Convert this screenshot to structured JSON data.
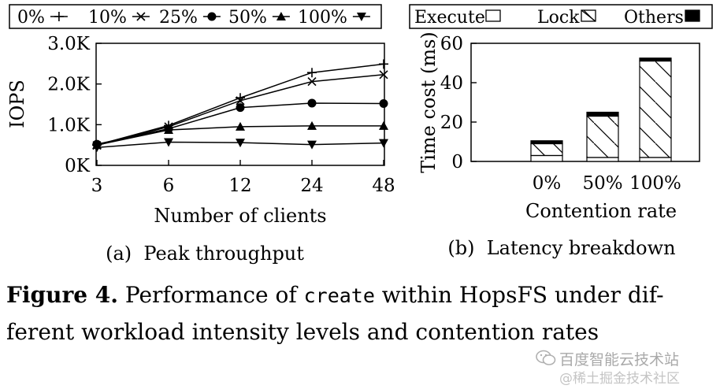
{
  "chart_data": [
    {
      "type": "line",
      "title": "",
      "subcaption": "(a)  Peak throughput",
      "xlabel": "Number of clients",
      "ylabel": "IOPS",
      "categories": [
        "3",
        "6",
        "12",
        "24",
        "48"
      ],
      "ylim": [
        0,
        3000
      ],
      "yticks": [
        {
          "value": 0,
          "label": "0K"
        },
        {
          "value": 1000,
          "label": "1.0K"
        },
        {
          "value": 2000,
          "label": "2.0K"
        },
        {
          "value": 3000,
          "label": "3.0K"
        }
      ],
      "grid": false,
      "legend_position": "top",
      "series": [
        {
          "name": "0%",
          "marker": "plus",
          "values": [
            500,
            980,
            1660,
            2280,
            2490
          ]
        },
        {
          "name": "10%",
          "marker": "cross",
          "values": [
            490,
            950,
            1590,
            2060,
            2230
          ]
        },
        {
          "name": "25%",
          "marker": "circle",
          "values": [
            520,
            900,
            1420,
            1530,
            1520
          ]
        },
        {
          "name": "50%",
          "marker": "triangle-up",
          "values": [
            500,
            870,
            950,
            970,
            970
          ]
        },
        {
          "name": "100%",
          "marker": "triangle-down",
          "values": [
            440,
            570,
            560,
            510,
            550
          ]
        }
      ]
    },
    {
      "type": "bar",
      "stacked": true,
      "title": "",
      "subcaption": "(b)  Latency breakdown",
      "xlabel": "Contention rate",
      "ylabel": "Time cost (ms)",
      "categories": [
        "0%",
        "50%",
        "100%"
      ],
      "ylim": [
        0,
        60
      ],
      "yticks": [
        0,
        20,
        40,
        60
      ],
      "legend_position": "top",
      "series": [
        {
          "name": "Execute",
          "fill": "white",
          "values": [
            3,
            2,
            2
          ]
        },
        {
          "name": "Lock",
          "fill": "hatch",
          "values": [
            6,
            21,
            49
          ]
        },
        {
          "name": "Others",
          "fill": "black",
          "values": [
            1.5,
            2,
            1.5
          ]
        }
      ]
    }
  ],
  "caption": {
    "label": "Figure 4.",
    "text_before": " Performance of ",
    "code": "create",
    "text_after_line1": " within HopsFS under dif-",
    "line2": "ferent workload intensity levels and contention rates"
  },
  "watermark": {
    "line1": "百度智能云技术站",
    "line2": "@稀土掘金技术社区"
  }
}
